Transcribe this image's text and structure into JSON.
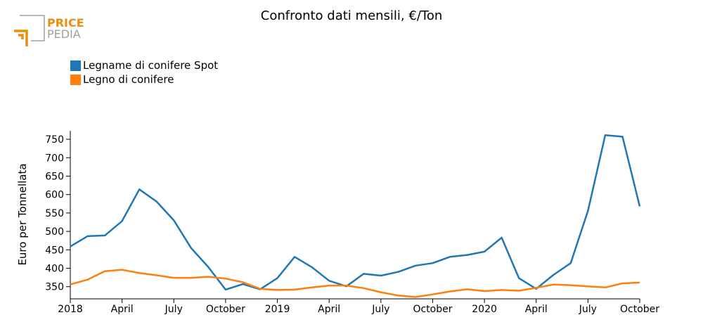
{
  "header": {
    "logo_top": "PRICE",
    "logo_bottom": "PEDIA"
  },
  "colors": {
    "logo_orange": "#e8900c",
    "logo_gray": "#a0a0a0",
    "axis": "#000000"
  },
  "chart_data": {
    "type": "line",
    "title": "Confronto dati mensili, €/Ton",
    "ylabel": "Euro per Tonnellata",
    "xlabel": "",
    "ylim": [
      317,
      773
    ],
    "yticks": [
      350,
      400,
      450,
      500,
      550,
      600,
      650,
      700,
      750
    ],
    "x": [
      "2018-01",
      "2018-02",
      "2018-03",
      "2018-04",
      "2018-05",
      "2018-06",
      "2018-07",
      "2018-08",
      "2018-09",
      "2018-10",
      "2018-11",
      "2018-12",
      "2019-01",
      "2019-02",
      "2019-03",
      "2019-04",
      "2019-05",
      "2019-06",
      "2019-07",
      "2019-08",
      "2019-09",
      "2019-10",
      "2019-11",
      "2019-12",
      "2020-01",
      "2020-02",
      "2020-03",
      "2020-04",
      "2020-05",
      "2020-06",
      "2020-07",
      "2020-08",
      "2020-09",
      "2020-10"
    ],
    "xticks": [
      {
        "label": "2018",
        "x": "2018-01"
      },
      {
        "label": "April",
        "x": "2018-04"
      },
      {
        "label": "July",
        "x": "2018-07"
      },
      {
        "label": "October",
        "x": "2018-10"
      },
      {
        "label": "2019",
        "x": "2019-01"
      },
      {
        "label": "April",
        "x": "2019-04"
      },
      {
        "label": "July",
        "x": "2019-07"
      },
      {
        "label": "October",
        "x": "2019-10"
      },
      {
        "label": "2020",
        "x": "2020-01"
      },
      {
        "label": "April",
        "x": "2020-04"
      },
      {
        "label": "July",
        "x": "2020-07"
      },
      {
        "label": "October",
        "x": "2020-10"
      }
    ],
    "series": [
      {
        "name": "Legname di conifere Spot",
        "color": "#1f77b4",
        "values": [
          459,
          487,
          489,
          528,
          614,
          581,
          530,
          455,
          403,
          342,
          357,
          343,
          373,
          431,
          403,
          366,
          351,
          385,
          380,
          390,
          407,
          414,
          431,
          436,
          445,
          483,
          373,
          344,
          382,
          414,
          556,
          761,
          757,
          568
        ]
      },
      {
        "name": "Legno di conifere",
        "color": "#ff7f0e",
        "values": [
          356,
          369,
          392,
          396,
          387,
          381,
          374,
          374,
          377,
          372,
          362,
          344,
          341,
          342,
          348,
          353,
          353,
          346,
          335,
          326,
          322,
          329,
          337,
          343,
          338,
          341,
          339,
          347,
          356,
          354,
          351,
          348,
          359,
          361
        ]
      }
    ]
  }
}
